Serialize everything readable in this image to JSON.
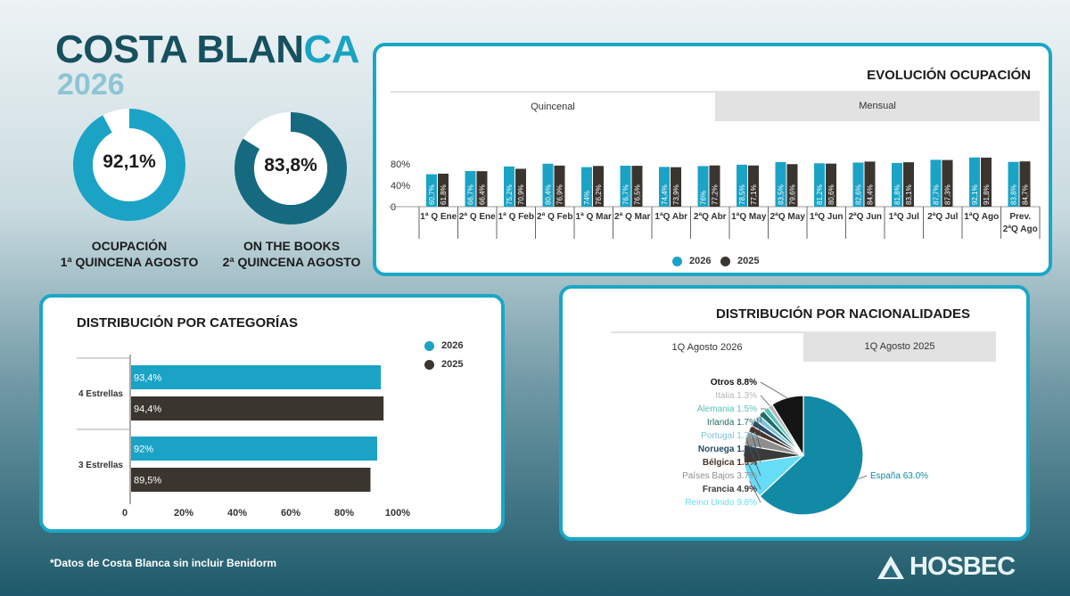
{
  "header": {
    "title_part1": "COSTA BLAN",
    "title_part2": "CA",
    "year": "2026"
  },
  "kpis": [
    {
      "value_label": "92,1%",
      "value": 92.1,
      "caption_line1": "OCUPACIÓN",
      "caption_line2": "1ª QUINCENA AGOSTO"
    },
    {
      "value_label": "83,8%",
      "value": 83.8,
      "caption_line1": "ON THE BOOKS",
      "caption_line2": "2ª QUINCENA AGOSTO"
    }
  ],
  "colors": {
    "series_2026": "#1ba3c6",
    "series_2025": "#3b3530",
    "card_border": "#1ba7c6",
    "donut1": "#1ba3c6",
    "donut2": "#156a80"
  },
  "evolution": {
    "title": "EVOLUCIÓN OCUPACIÓN",
    "tabs": [
      "Quincenal",
      "Mensual"
    ],
    "active_tab": 0,
    "legend": [
      "2026",
      "2025"
    ]
  },
  "categories": {
    "title": "DISTRIBUCIÓN POR CATEGORÍAS",
    "legend": [
      "2026",
      "2025"
    ]
  },
  "nationalities": {
    "title": "DISTRIBUCIÓN POR NACIONALIDADES",
    "tabs": [
      "1Q Agosto 2026",
      "1Q Agosto 2025"
    ],
    "active_tab": 0
  },
  "footer": {
    "note": "*Datos de Costa Blanca sin incluir Benidorm",
    "logo_text": "HOSBEC"
  },
  "chart_data": [
    {
      "type": "bar",
      "title": "EVOLUCIÓN OCUPACIÓN",
      "categories": [
        "1ª Q Ene",
        "2ª Q Ene",
        "1ª Q Feb",
        "2ª Q Feb",
        "1ª Q Mar",
        "2ª Q Mar",
        "1ªQ Abr",
        "2ªQ Abr",
        "1ªQ May",
        "2ªQ May",
        "1ªQ Jun",
        "2ªQ Jun",
        "1ªQ Jul",
        "2ªQ Jul",
        "1ªQ Ago",
        "Prev. 2ªQ Ago"
      ],
      "series": [
        {
          "name": "2026",
          "values": [
            60.7,
            66.7,
            75.2,
            80.4,
            74,
            76.7,
            74.4,
            76,
            78.5,
            83.5,
            81.2,
            82.6,
            81.8,
            87.7,
            92.1,
            83.8
          ],
          "labels": [
            "60,7%",
            "66,7%",
            "75,2%",
            "80,4%",
            "74%",
            "76,7%",
            "74,4%",
            "76%",
            "78,5%",
            "83,5%",
            "81,2%",
            "82,6%",
            "81,8%",
            "87,7%",
            "92,1%",
            "83,8%"
          ]
        },
        {
          "name": "2025",
          "values": [
            61.8,
            66.4,
            70.9,
            76.9,
            76.2,
            76.5,
            73.9,
            77.2,
            77.1,
            79.6,
            80.6,
            84.4,
            83.1,
            87.3,
            91.8,
            84.7
          ],
          "labels": [
            "61,8%",
            "66,4%",
            "70,9%",
            "76,9%",
            "76,2%",
            "76,5%",
            "73,9%",
            "77,2%",
            "77,1%",
            "79,6%",
            "80,6%",
            "84,4%",
            "83,1%",
            "87,3%",
            "91,8%",
            "84,7%"
          ]
        }
      ],
      "yticks": [
        "0",
        "40%",
        "80%"
      ],
      "ylim": [
        0,
        100
      ]
    },
    {
      "type": "bar",
      "orientation": "horizontal",
      "title": "DISTRIBUCIÓN POR CATEGORÍAS",
      "categories": [
        "4 Estrellas",
        "3 Estrellas"
      ],
      "series": [
        {
          "name": "2026",
          "values": [
            93.4,
            92
          ],
          "labels": [
            "93,4%",
            "92%"
          ]
        },
        {
          "name": "2025",
          "values": [
            94.4,
            89.5
          ],
          "labels": [
            "94,4%",
            "89,5%"
          ]
        }
      ],
      "xticks": [
        "0",
        "20%",
        "40%",
        "60%",
        "80%",
        "100%"
      ],
      "xlim": [
        0,
        100
      ]
    },
    {
      "type": "pie",
      "title": "DISTRIBUCIÓN POR NACIONALIDADES",
      "slices": [
        {
          "name": "España",
          "value": 63.0,
          "label": "España 63.0%",
          "color": "#128aa6"
        },
        {
          "name": "Reino Unido",
          "value": 9.8,
          "label": "Reino Unido 9.8%",
          "color": "#66dcf7"
        },
        {
          "name": "Francia",
          "value": 4.9,
          "label": "Francia 4.9%",
          "color": "#3a3a3a"
        },
        {
          "name": "Países Bajos",
          "value": 3.7,
          "label": "Países Bajos 3.7%",
          "color": "#8e8e8e"
        },
        {
          "name": "Bélgica",
          "value": 1.9,
          "label": "Bélgica 1.9%",
          "color": "#4a3328"
        },
        {
          "name": "Noruega",
          "value": 1.7,
          "label": "Noruega 1.7%",
          "color": "#274a66"
        },
        {
          "name": "Portugal",
          "value": 1.7,
          "label": "Portugal 1.7%",
          "color": "#7fc3d8"
        },
        {
          "name": "Irlanda",
          "value": 1.7,
          "label": "Irlanda 1.7%",
          "color": "#1f6e6a"
        },
        {
          "name": "Alemania",
          "value": 1.5,
          "label": "Alemania 1.5%",
          "color": "#5ac0b8"
        },
        {
          "name": "Italia",
          "value": 1.3,
          "label": "Italia 1.3%",
          "color": "#b8b8b8"
        },
        {
          "name": "Otros",
          "value": 8.8,
          "label": "Otros 8.8%",
          "color": "#151515"
        }
      ]
    }
  ]
}
